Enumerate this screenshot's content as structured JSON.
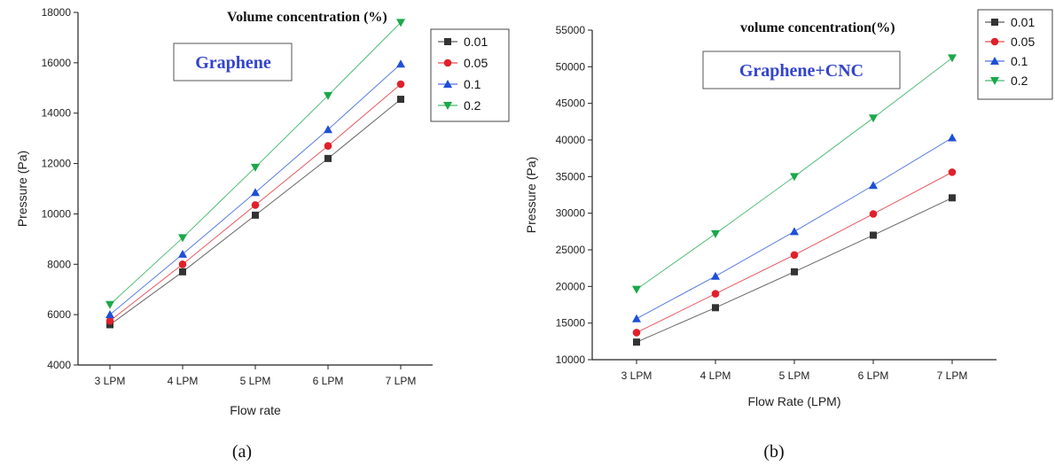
{
  "chart_data": [
    {
      "type": "line",
      "panel_caption": "(a)",
      "label": "Graphene",
      "legend_title": "Volume concentration (%)",
      "legend_position": "top-right",
      "xlabel": "Flow rate",
      "ylabel": "Pressure (Pa)",
      "categories": [
        "3 LPM",
        "4 LPM",
        "5 LPM",
        "6 LPM",
        "7 LPM"
      ],
      "ylim": [
        4000,
        18000
      ],
      "yticks": [
        4000,
        6000,
        8000,
        10000,
        12000,
        14000,
        16000,
        18000
      ],
      "series": [
        {
          "name": "0.01",
          "color": "#333333",
          "marker": "square",
          "values": [
            5600,
            7700,
            9950,
            12200,
            14550
          ]
        },
        {
          "name": "0.05",
          "color": "#e0202a",
          "marker": "circle",
          "values": [
            5750,
            8000,
            10350,
            12700,
            15150
          ]
        },
        {
          "name": "0.1",
          "color": "#1f4fd8",
          "marker": "triangle-up",
          "values": [
            6000,
            8400,
            10850,
            13350,
            15950
          ]
        },
        {
          "name": "0.2",
          "color": "#1aa84a",
          "marker": "triangle-down",
          "values": [
            6400,
            9050,
            11850,
            14700,
            17600
          ]
        }
      ]
    },
    {
      "type": "line",
      "panel_caption": "(b)",
      "label": "Graphene+CNC",
      "legend_title": "volume concentration(%)",
      "legend_position": "top-right",
      "xlabel": "Flow Rate (LPM)",
      "ylabel": "Pressure (Pa)",
      "categories": [
        "3 LPM",
        "4 LPM",
        "5 LPM",
        "6 LPM",
        "7 LPM"
      ],
      "ylim": [
        10000,
        55000
      ],
      "yticks": [
        10000,
        15000,
        20000,
        25000,
        30000,
        35000,
        40000,
        45000,
        50000,
        55000
      ],
      "series": [
        {
          "name": "0.01",
          "color": "#333333",
          "marker": "square",
          "values": [
            12400,
            17100,
            22000,
            27000,
            32100
          ]
        },
        {
          "name": "0.05",
          "color": "#e0202a",
          "marker": "circle",
          "values": [
            13700,
            19000,
            24300,
            29900,
            35600
          ]
        },
        {
          "name": "0.1",
          "color": "#1f4fd8",
          "marker": "triangle-up",
          "values": [
            15600,
            21400,
            27500,
            33800,
            40300
          ]
        },
        {
          "name": "0.2",
          "color": "#1aa84a",
          "marker": "triangle-down",
          "values": [
            19600,
            27200,
            35000,
            43000,
            51200
          ]
        }
      ]
    }
  ]
}
